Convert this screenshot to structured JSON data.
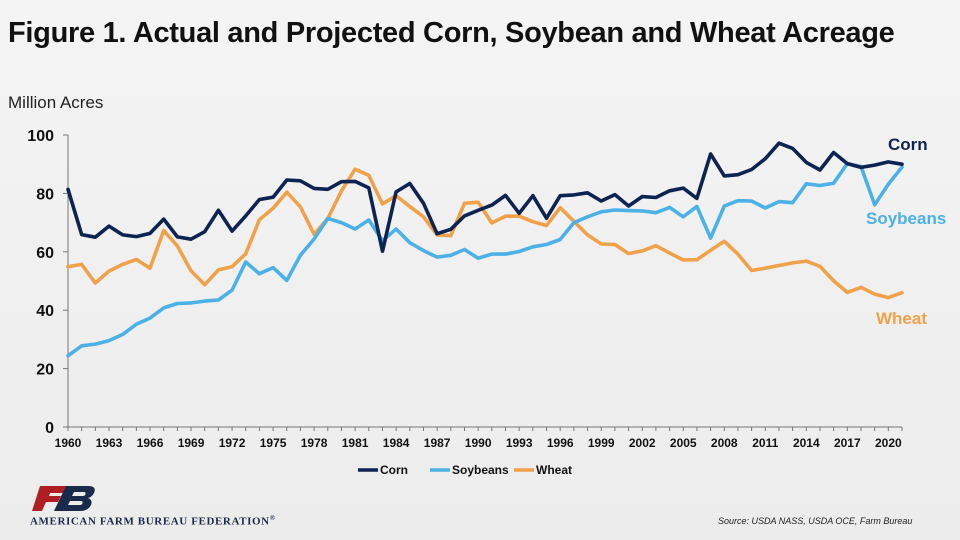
{
  "title": "Figure 1. Actual and Projected Corn, Soybean and Wheat Acreage",
  "unit_label": "Million Acres",
  "source": "Source: USDA NASS, USDA OCE, Farm Bureau",
  "organization": "AMERICAN FARM BUREAU FEDERATION",
  "organization_mark": "®",
  "colors": {
    "corn": "#0d2352",
    "soybeans": "#4bb1e6",
    "wheat": "#f0a24a",
    "logo_red": "#b01e23",
    "logo_navy": "#1a2a4a"
  },
  "chart_data": {
    "type": "line",
    "title": "Figure 1. Actual and Projected Corn, Soybean and Wheat Acreage",
    "ylabel": "Million Acres",
    "ylim": [
      0,
      100
    ],
    "yticks": [
      0,
      20,
      40,
      60,
      80,
      100
    ],
    "xlim": [
      1960,
      2021
    ],
    "xticks": [
      1960,
      1963,
      1966,
      1969,
      1972,
      1975,
      1978,
      1981,
      1984,
      1987,
      1990,
      1993,
      1996,
      1999,
      2002,
      2005,
      2008,
      2011,
      2014,
      2017,
      2020
    ],
    "legend_position": "bottom",
    "grid": false,
    "x": [
      1960,
      1961,
      1962,
      1963,
      1964,
      1965,
      1966,
      1967,
      1968,
      1969,
      1970,
      1971,
      1972,
      1973,
      1974,
      1975,
      1976,
      1977,
      1978,
      1979,
      1980,
      1981,
      1982,
      1983,
      1984,
      1985,
      1986,
      1987,
      1988,
      1989,
      1990,
      1991,
      1992,
      1993,
      1994,
      1995,
      1996,
      1997,
      1998,
      1999,
      2000,
      2001,
      2002,
      2003,
      2004,
      2005,
      2006,
      2007,
      2008,
      2009,
      2010,
      2011,
      2012,
      2013,
      2014,
      2015,
      2016,
      2017,
      2018,
      2019,
      2020,
      2021
    ],
    "series": [
      {
        "name": "Corn",
        "color": "#0d2352",
        "values": [
          81.4,
          65.9,
          65.0,
          68.8,
          65.8,
          65.2,
          66.3,
          71.2,
          65.1,
          64.3,
          66.9,
          74.2,
          67.1,
          72.3,
          77.9,
          78.7,
          84.6,
          84.3,
          81.7,
          81.4,
          84.0,
          84.1,
          81.9,
          60.2,
          80.5,
          83.4,
          76.6,
          66.2,
          67.7,
          72.3,
          74.2,
          76.0,
          79.3,
          73.2,
          79.2,
          71.5,
          79.2,
          79.5,
          80.2,
          77.4,
          79.6,
          75.7,
          78.9,
          78.6,
          80.9,
          81.8,
          78.3,
          93.5,
          86.0,
          86.4,
          88.2,
          91.9,
          97.2,
          95.4,
          90.6,
          88.0,
          94.0,
          90.2,
          88.9,
          89.7,
          90.8,
          90.0
        ]
      },
      {
        "name": "Soybeans",
        "color": "#4bb1e6",
        "values": [
          24.4,
          27.8,
          28.4,
          29.6,
          31.7,
          35.2,
          37.3,
          40.8,
          42.3,
          42.5,
          43.1,
          43.5,
          46.9,
          56.5,
          52.5,
          54.6,
          50.2,
          58.8,
          64.4,
          71.4,
          70.0,
          67.8,
          70.9,
          63.8,
          67.8,
          63.1,
          60.4,
          58.2,
          58.8,
          60.8,
          57.8,
          59.2,
          59.2,
          60.1,
          61.7,
          62.5,
          64.2,
          70.0,
          72.0,
          73.7,
          74.3,
          74.1,
          74.0,
          73.4,
          75.2,
          72.0,
          75.5,
          64.7,
          75.7,
          77.5,
          77.4,
          75.0,
          77.2,
          76.8,
          83.3,
          82.7,
          83.5,
          90.2,
          89.2,
          76.1,
          83.1,
          89.0
        ]
      },
      {
        "name": "Wheat",
        "color": "#f0a24a",
        "values": [
          54.9,
          55.7,
          49.3,
          53.4,
          55.7,
          57.4,
          54.4,
          67.3,
          62.0,
          53.5,
          48.7,
          53.8,
          54.9,
          59.3,
          71.0,
          74.9,
          80.4,
          75.4,
          66.0,
          71.4,
          80.8,
          88.3,
          86.2,
          76.4,
          79.2,
          75.5,
          72.0,
          65.8,
          65.5,
          76.6,
          77.0,
          69.9,
          72.2,
          72.2,
          70.3,
          69.0,
          75.1,
          70.4,
          65.8,
          62.7,
          62.5,
          59.4,
          60.3,
          62.1,
          59.6,
          57.2,
          57.3,
          60.5,
          63.6,
          59.2,
          53.6,
          54.4,
          55.3,
          56.2,
          56.8,
          55.0,
          50.1,
          46.1,
          47.8,
          45.5,
          44.3,
          46.0
        ]
      }
    ]
  }
}
